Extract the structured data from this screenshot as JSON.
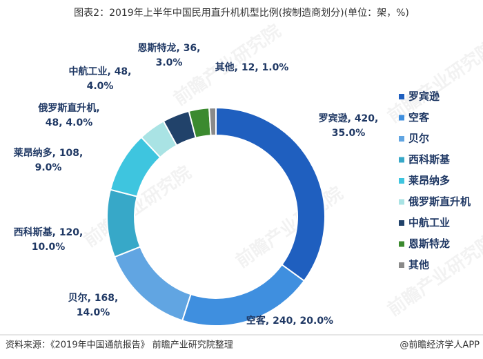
{
  "chart_data": {
    "type": "donut",
    "title": "图表2：2019年上半年中国民用直升机机型比例(按制造商划分)(单位：架，%)",
    "categories": [
      "罗宾逊",
      "空客",
      "贝尔",
      "西科斯基",
      "莱昂纳多",
      "俄罗斯直升机",
      "中航工业",
      "恩斯特龙",
      "其他"
    ],
    "values": [
      420,
      240,
      168,
      120,
      108,
      48,
      48,
      36,
      12
    ],
    "percents": [
      35.0,
      20.0,
      14.0,
      10.0,
      9.0,
      4.0,
      4.0,
      3.0,
      1.0
    ],
    "value_labels": [
      [
        "罗宾逊, 420,",
        "35.0%"
      ],
      [
        "空客, 240, 20.0%"
      ],
      [
        "贝尔, 168,",
        "14.0%"
      ],
      [
        "西科斯基, 120,",
        "10.0%"
      ],
      [
        "莱昂纳多, 108,",
        "9.0%"
      ],
      [
        "俄罗斯直升机,",
        "48, 4.0%"
      ],
      [
        "中航工业, 48,",
        "4.0%"
      ],
      [
        "恩斯特龙, 36,",
        "3.0%"
      ],
      [
        "其他, 12, 1.0%"
      ]
    ],
    "colors": [
      "#1f5fbf",
      "#3f8fdf",
      "#61a5e2",
      "#37a8c8",
      "#3ec5df",
      "#a9e3e4",
      "#21426a",
      "#3b8a2f",
      "#8a8a8a"
    ],
    "legend": "right",
    "source": "资料来源：《2019年中国通航报告》 前瞻产业研究院整理",
    "footer": "@前瞻经济学人APP",
    "watermark": "前瞻产业研究院"
  }
}
